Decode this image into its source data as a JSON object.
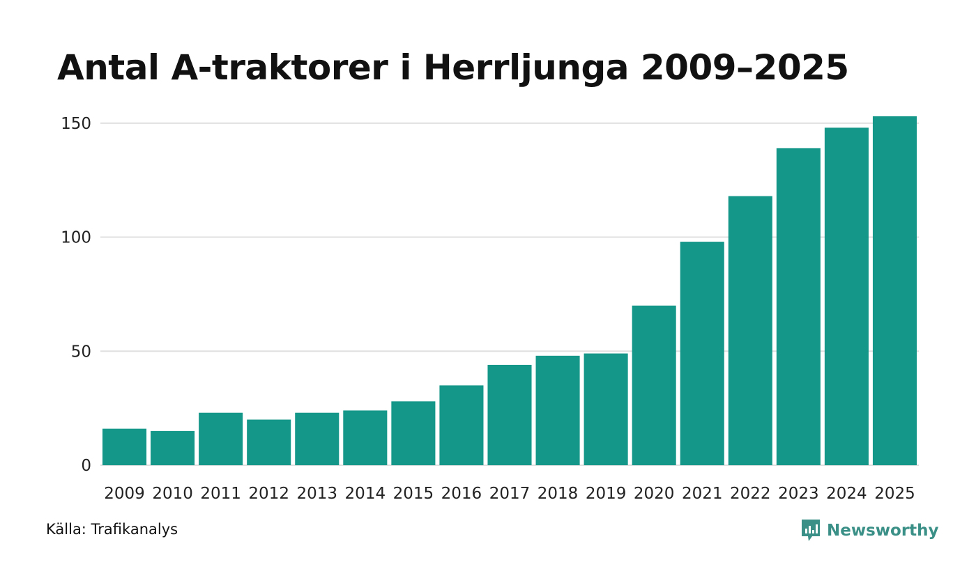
{
  "title": "Antal A-traktorer i Herrljunga 2009–2025",
  "source": "Källa: Trafikanalys",
  "logo": {
    "text": "Newsworthy",
    "icon": "newsworthy-logo-icon",
    "color": "#3a8f86"
  },
  "colors": {
    "bar": "#149688",
    "grid": "#e0e0e0"
  },
  "chart_data": {
    "type": "bar",
    "title": "Antal A-traktorer i Herrljunga 2009–2025",
    "xlabel": "",
    "ylabel": "",
    "categories": [
      "2009",
      "2010",
      "2011",
      "2012",
      "2013",
      "2014",
      "2015",
      "2016",
      "2017",
      "2018",
      "2019",
      "2020",
      "2021",
      "2022",
      "2023",
      "2024",
      "2025"
    ],
    "values": [
      16,
      15,
      23,
      20,
      23,
      24,
      28,
      35,
      44,
      48,
      49,
      70,
      98,
      118,
      139,
      148,
      153
    ],
    "ylim": [
      0,
      153
    ],
    "yticks": [
      0,
      50,
      100,
      150
    ],
    "ytick_labels": [
      "0",
      "50",
      "100",
      "150"
    ],
    "grid": true,
    "legend": "none"
  }
}
